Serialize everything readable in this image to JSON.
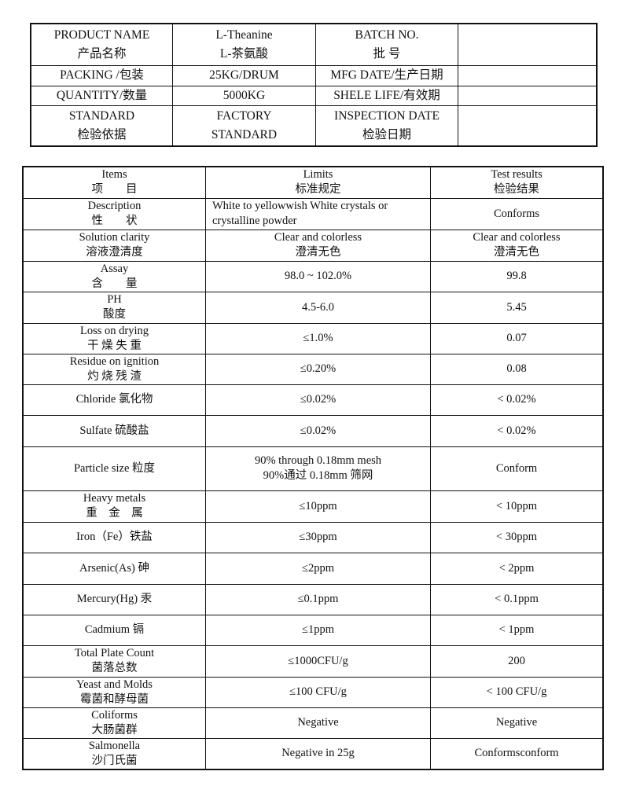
{
  "header_table": {
    "product_name_label": "PRODUCT NAME",
    "product_name_label_cn": "产品名称",
    "product_name": "L-Theanine",
    "product_name_cn": "L-茶氨酸",
    "batch_label": "BATCH NO.",
    "batch_label_cn": "批 号",
    "batch_value": "",
    "packing_label": "PACKING /包装",
    "packing": "25KG/DRUM",
    "mfg_label": "MFG DATE/生产日期",
    "mfg_value": "",
    "quantity_label": "QUANTITY/数量",
    "quantity": "5000KG",
    "shelf_label": "SHELE LIFE/有效期",
    "shelf_value": "",
    "standard_label": "STANDARD",
    "standard_label_cn": "检验依据",
    "standard_1": "FACTORY",
    "standard_2": "STANDARD",
    "inspection_label": "INSPECTION DATE",
    "inspection_label_cn": "检验日期",
    "inspection_value": ""
  },
  "results_table": {
    "headers": [
      {
        "en": "Items",
        "cn": "项　　目"
      },
      {
        "en": "Limits",
        "cn": "标准规定"
      },
      {
        "en": "Test results",
        "cn": "检验结果"
      }
    ],
    "rows": [
      {
        "item": [
          "Description",
          "性　　状"
        ],
        "limits": [
          "White to yellowwish White crystals or",
          "crystalline powder"
        ],
        "result": [
          "Conforms"
        ],
        "limits_left": true
      },
      {
        "item": [
          "Solution clarity",
          "溶液澄清度"
        ],
        "limits": [
          "Clear and colorless",
          "澄清无色"
        ],
        "result": [
          "Clear and colorless",
          "澄清无色"
        ]
      },
      {
        "item": [
          "Assay",
          "含　　量"
        ],
        "limits": [
          "98.0 ~ 102.0%"
        ],
        "result": [
          "99.8"
        ]
      },
      {
        "item": [
          "PH",
          "酸度"
        ],
        "limits": [
          "4.5-6.0"
        ],
        "result": [
          "5.45"
        ]
      },
      {
        "item": [
          "Loss on drying",
          "干 燥 失 重"
        ],
        "limits": [
          "≤1.0%"
        ],
        "result": [
          "0.07"
        ]
      },
      {
        "item": [
          "Residue on ignition",
          "灼 烧 残 渣"
        ],
        "limits": [
          "≤0.20%"
        ],
        "result": [
          "0.08"
        ]
      },
      {
        "item": [
          "Chloride  氯化物"
        ],
        "limits": [
          "≤0.02%"
        ],
        "result": [
          "< 0.02%"
        ]
      },
      {
        "item": [
          "Sulfate  硫酸盐"
        ],
        "limits": [
          "≤0.02%"
        ],
        "result": [
          "< 0.02%"
        ]
      },
      {
        "item": [
          "Particle size  粒度"
        ],
        "limits": [
          "90% through 0.18mm mesh",
          "90%通过 0.18mm 筛网"
        ],
        "result": [
          "Conform"
        ]
      },
      {
        "item": [
          "Heavy metals",
          "重　金　属"
        ],
        "limits": [
          "≤10ppm"
        ],
        "result": [
          "< 10ppm"
        ]
      },
      {
        "item": [
          "Iron（Fe）铁盐"
        ],
        "limits": [
          "≤30ppm"
        ],
        "result": [
          "< 30ppm"
        ]
      },
      {
        "item": [
          "Arsenic(As)  砷"
        ],
        "limits": [
          "≤2ppm"
        ],
        "result": [
          "< 2ppm"
        ]
      },
      {
        "item": [
          "Mercury(Hg)  汞"
        ],
        "limits": [
          "≤0.1ppm"
        ],
        "result": [
          "< 0.1ppm"
        ]
      },
      {
        "item": [
          "Cadmium 镉"
        ],
        "limits": [
          "≤1ppm"
        ],
        "result": [
          "< 1ppm"
        ]
      },
      {
        "item": [
          "Total Plate Count",
          "菌落总数"
        ],
        "limits": [
          "≤1000CFU/g"
        ],
        "result": [
          "200"
        ]
      },
      {
        "item": [
          "Yeast and Molds",
          "霉菌和酵母菌"
        ],
        "limits": [
          "≤100 CFU/g"
        ],
        "result": [
          "< 100 CFU/g"
        ]
      },
      {
        "item": [
          "Coliforms",
          "大肠菌群"
        ],
        "limits": [
          "Negative"
        ],
        "result": [
          "Negative"
        ]
      },
      {
        "item": [
          "Salmonella",
          "沙门氏菌"
        ],
        "limits": [
          "Negative in 25g"
        ],
        "result": [
          "Conformsconform"
        ]
      }
    ]
  }
}
